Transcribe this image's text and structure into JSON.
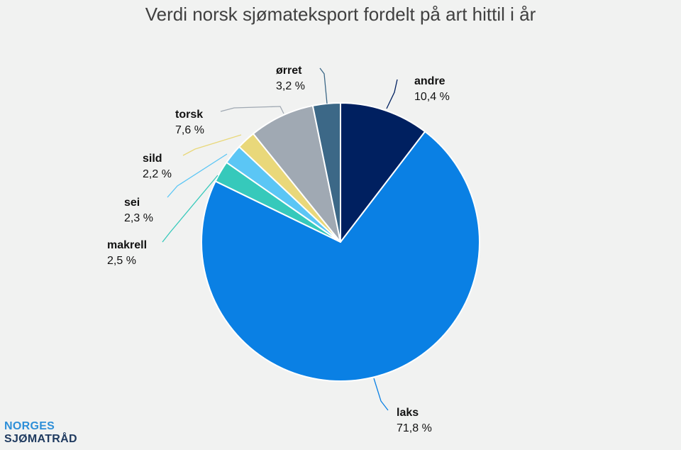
{
  "chart_data": {
    "type": "pie",
    "title": "Verdi norsk sjømateksport fordelt på art hittil i år",
    "slices": [
      {
        "name": "andre",
        "value": 10.4,
        "value_label": "10,4 %",
        "color": "#002060"
      },
      {
        "name": "laks",
        "value": 71.8,
        "value_label": "71,8 %",
        "color": "#0a80e4"
      },
      {
        "name": "makrell",
        "value": 2.5,
        "value_label": "2,5 %",
        "color": "#36c9bb"
      },
      {
        "name": "sei",
        "value": 2.3,
        "value_label": "2,3 %",
        "color": "#5bc6f5"
      },
      {
        "name": "sild",
        "value": 2.2,
        "value_label": "2,2 %",
        "color": "#e9d87a"
      },
      {
        "name": "torsk",
        "value": 7.6,
        "value_label": "7,6 %",
        "color": "#a0a9b3"
      },
      {
        "name": "ørret",
        "value": 3.2,
        "value_label": "3,2 %",
        "color": "#3c6887"
      }
    ]
  },
  "logo": {
    "line1": "NORGES",
    "line2": "SJØMATRÅD"
  }
}
